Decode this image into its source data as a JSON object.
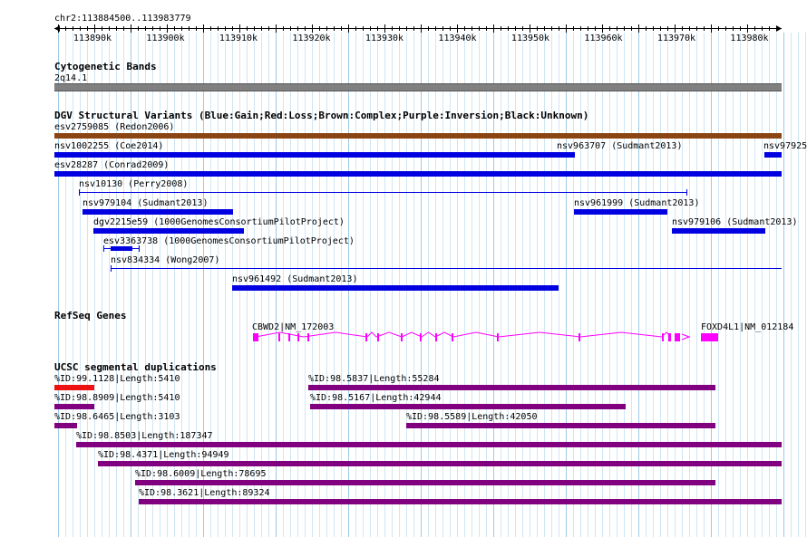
{
  "browser": {
    "position": "chr2:113884500..113983779",
    "ruler_ticks": [
      "113890k",
      "113900k",
      "113910k",
      "113920k",
      "113930k",
      "113940k",
      "113950k",
      "113960k",
      "113970k",
      "113980k"
    ]
  },
  "tracks": {
    "cytoband": {
      "title": "Cytogenetic Bands",
      "band": "2q14.1"
    },
    "dgv": {
      "title": "DGV Structural Variants (Blue:Gain;Red:Loss;Brown:Complex;Purple:Inversion;Black:Unknown)",
      "colors": {
        "gain": "#0000e0",
        "complex": "#8b4513"
      },
      "features": [
        {
          "label": "esv2759085 (Redon2006)",
          "type": "complex"
        },
        {
          "label": "nsv1002255 (Coe2014)",
          "type": "gain"
        },
        {
          "label": "nsv963707 (Sudmant2013)",
          "type": "gain"
        },
        {
          "label": "nsv97925",
          "type": "gain"
        },
        {
          "label": "esv28287 (Conrad2009)",
          "type": "gain"
        },
        {
          "label": "nsv10130 (Perry2008)",
          "type": "gain"
        },
        {
          "label": "nsv979104 (Sudmant2013)",
          "type": "gain"
        },
        {
          "label": "nsv961999 (Sudmant2013)",
          "type": "gain"
        },
        {
          "label": "dgv2215e59 (1000GenomesConsortiumPilotProject)",
          "type": "gain"
        },
        {
          "label": "nsv979106 (Sudmant2013)",
          "type": "gain"
        },
        {
          "label": "esv3363738 (1000GenomesConsortiumPilotProject)",
          "type": "gain"
        },
        {
          "label": "nsv834334 (Wong2007)",
          "type": "gain"
        },
        {
          "label": "nsv961492 (Sudmant2013)",
          "type": "gain"
        }
      ]
    },
    "refseq": {
      "title": "RefSeq Genes",
      "color": "#ff00ff",
      "genes": [
        {
          "label": "CBWD2|NM_172003"
        },
        {
          "label": "FOXD4L1|NM_012184"
        }
      ]
    },
    "segdup": {
      "title": "UCSC segmental duplications",
      "colors": {
        "red": "#ee1111",
        "purple": "#800080"
      },
      "features": [
        {
          "label": "%ID:99.1128|Length:5410",
          "color": "red"
        },
        {
          "label": "%ID:98.5837|Length:55284",
          "color": "purple"
        },
        {
          "label": "%ID:98.8909|Length:5410",
          "color": "purple"
        },
        {
          "label": "%ID:98.5167|Length:42944",
          "color": "purple"
        },
        {
          "label": "%ID:98.6465|Length:3103",
          "color": "purple"
        },
        {
          "label": "%ID:98.5589|Length:42050",
          "color": "purple"
        },
        {
          "label": "%ID:98.8503|Length:187347",
          "color": "purple"
        },
        {
          "label": "%ID:98.4371|Length:94949",
          "color": "purple"
        },
        {
          "label": "%ID:98.6009|Length:78695",
          "color": "purple"
        },
        {
          "label": "%ID:98.3621|Length:89324",
          "color": "purple"
        }
      ]
    }
  }
}
